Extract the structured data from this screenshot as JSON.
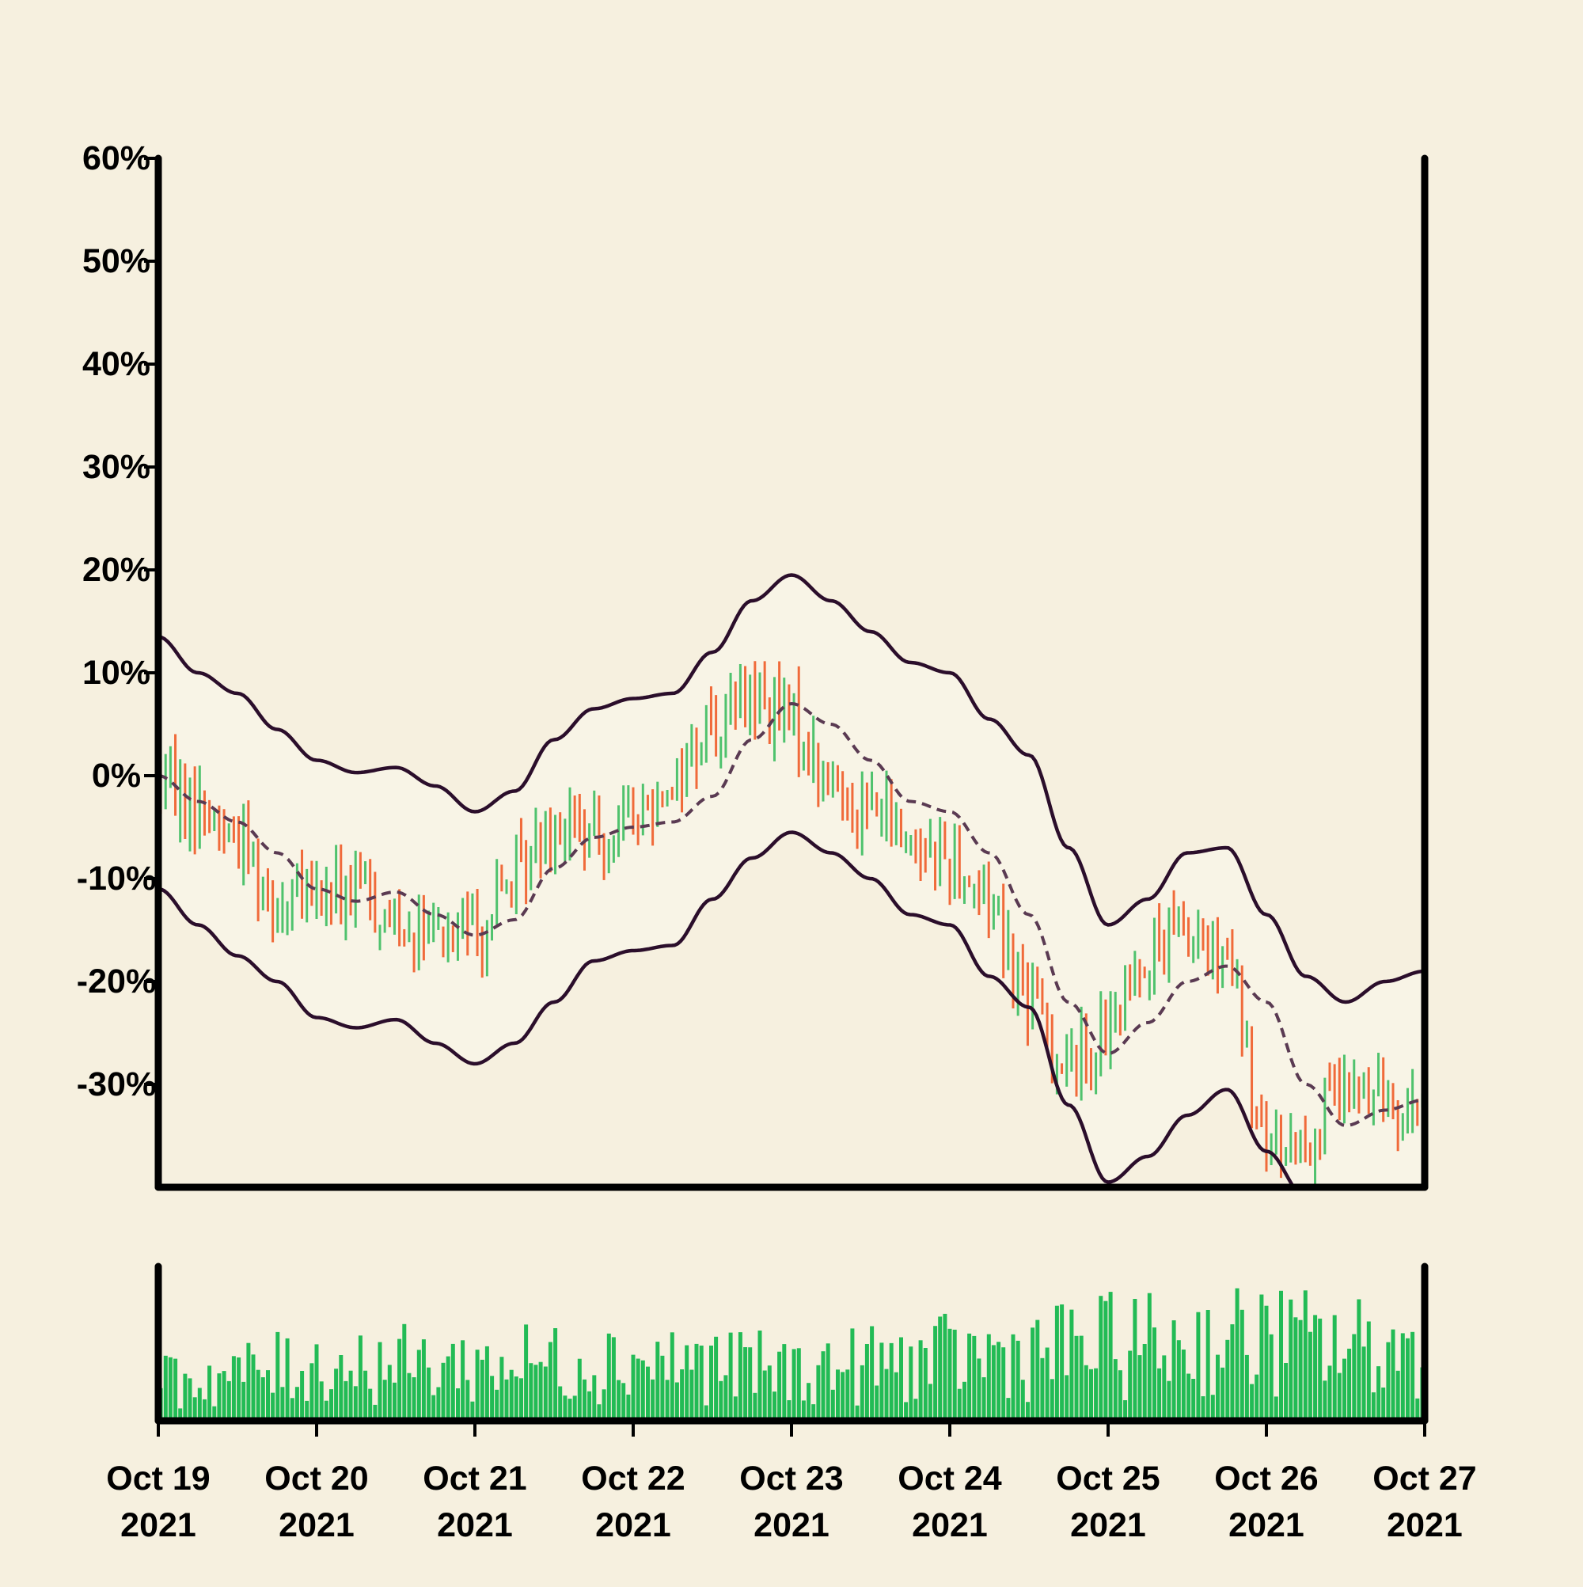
{
  "chart_data": {
    "type": "ohlc",
    "title": "",
    "xlabel": "",
    "ylabel": "",
    "ylim": [
      -40,
      60
    ],
    "y_ticks": [
      "60%",
      "50%",
      "40%",
      "30%",
      "20%",
      "10%",
      "0%",
      "-10%",
      "-20%",
      "-30%"
    ],
    "y_tick_values": [
      60,
      50,
      40,
      30,
      20,
      10,
      0,
      -10,
      -20,
      -30
    ],
    "x_range": [
      "2021-10-19",
      "2021-10-27"
    ],
    "x_ticks": [
      {
        "date": "2021-10-19",
        "line1": "Oct 19",
        "line2": "2021"
      },
      {
        "date": "2021-10-20",
        "line1": "Oct 20",
        "line2": "2021"
      },
      {
        "date": "2021-10-21",
        "line1": "Oct 21",
        "line2": "2021"
      },
      {
        "date": "2021-10-22",
        "line1": "Oct 22",
        "line2": "2021"
      },
      {
        "date": "2021-10-23",
        "line1": "Oct 23",
        "line2": "2021"
      },
      {
        "date": "2021-10-24",
        "line1": "Oct 24",
        "line2": "2021"
      },
      {
        "date": "2021-10-25",
        "line1": "Oct 25",
        "line2": "2021"
      },
      {
        "date": "2021-10-26",
        "line1": "Oct 26",
        "line2": "2021"
      },
      {
        "date": "2021-10-27",
        "line1": "Oct 27",
        "line2": "2021"
      }
    ],
    "middle_band": [
      [
        "2021-10-19 00:00",
        0
      ],
      [
        "2021-10-19 06:00",
        -2.5
      ],
      [
        "2021-10-19 12:00",
        -4.5
      ],
      [
        "2021-10-19 18:00",
        -7.5
      ],
      [
        "2021-10-20 00:00",
        -11
      ],
      [
        "2021-10-20 06:00",
        -12.2
      ],
      [
        "2021-10-20 12:00",
        -11.3
      ],
      [
        "2021-10-20 18:00",
        -13.5
      ],
      [
        "2021-10-21 00:00",
        -15.5
      ],
      [
        "2021-10-21 06:00",
        -14
      ],
      [
        "2021-10-21 12:00",
        -9
      ],
      [
        "2021-10-21 18:00",
        -6
      ],
      [
        "2021-10-22 00:00",
        -5
      ],
      [
        "2021-10-22 06:00",
        -4.5
      ],
      [
        "2021-10-22 12:00",
        -2
      ],
      [
        "2021-10-22 18:00",
        3.5
      ],
      [
        "2021-10-23 00:00",
        7
      ],
      [
        "2021-10-23 06:00",
        5
      ],
      [
        "2021-10-23 12:00",
        1.5
      ],
      [
        "2021-10-23 18:00",
        -2.5
      ],
      [
        "2021-10-24 00:00",
        -3.5
      ],
      [
        "2021-10-24 06:00",
        -7.5
      ],
      [
        "2021-10-24 12:00",
        -13.5
      ],
      [
        "2021-10-24 18:00",
        -22
      ],
      [
        "2021-10-25 00:00",
        -27
      ],
      [
        "2021-10-25 06:00",
        -24
      ],
      [
        "2021-10-25 12:00",
        -20
      ],
      [
        "2021-10-25 18:00",
        -18.5
      ],
      [
        "2021-10-26 00:00",
        -22
      ],
      [
        "2021-10-26 06:00",
        -30
      ],
      [
        "2021-10-26 12:00",
        -34
      ],
      [
        "2021-10-26 18:00",
        -32.5
      ],
      [
        "2021-10-27 00:00",
        -31.5
      ]
    ],
    "upper_band": [
      [
        "2021-10-19 00:00",
        13.5
      ],
      [
        "2021-10-19 06:00",
        10
      ],
      [
        "2021-10-19 12:00",
        8
      ],
      [
        "2021-10-19 18:00",
        4.5
      ],
      [
        "2021-10-20 00:00",
        1.5
      ],
      [
        "2021-10-20 06:00",
        0.3
      ],
      [
        "2021-10-20 12:00",
        0.8
      ],
      [
        "2021-10-20 18:00",
        -1
      ],
      [
        "2021-10-21 00:00",
        -3.5
      ],
      [
        "2021-10-21 06:00",
        -1.5
      ],
      [
        "2021-10-21 12:00",
        3.5
      ],
      [
        "2021-10-21 18:00",
        6.5
      ],
      [
        "2021-10-22 00:00",
        7.5
      ],
      [
        "2021-10-22 06:00",
        8
      ],
      [
        "2021-10-22 12:00",
        12
      ],
      [
        "2021-10-22 18:00",
        17
      ],
      [
        "2021-10-23 00:00",
        19.5
      ],
      [
        "2021-10-23 06:00",
        17
      ],
      [
        "2021-10-23 12:00",
        14
      ],
      [
        "2021-10-23 18:00",
        11
      ],
      [
        "2021-10-24 00:00",
        10
      ],
      [
        "2021-10-24 06:00",
        5.5
      ],
      [
        "2021-10-24 12:00",
        2
      ],
      [
        "2021-10-24 18:00",
        -7
      ],
      [
        "2021-10-25 00:00",
        -14.5
      ],
      [
        "2021-10-25 06:00",
        -12
      ],
      [
        "2021-10-25 12:00",
        -7.5
      ],
      [
        "2021-10-25 18:00",
        -7
      ],
      [
        "2021-10-26 00:00",
        -13.5
      ],
      [
        "2021-10-26 06:00",
        -19.5
      ],
      [
        "2021-10-26 12:00",
        -22
      ],
      [
        "2021-10-26 18:00",
        -20
      ],
      [
        "2021-10-27 00:00",
        -19
      ]
    ],
    "lower_band": [
      [
        "2021-10-19 00:00",
        -11
      ],
      [
        "2021-10-19 06:00",
        -14.5
      ],
      [
        "2021-10-19 12:00",
        -17.5
      ],
      [
        "2021-10-19 18:00",
        -20
      ],
      [
        "2021-10-20 00:00",
        -23.5
      ],
      [
        "2021-10-20 06:00",
        -24.5
      ],
      [
        "2021-10-20 12:00",
        -23.7
      ],
      [
        "2021-10-20 18:00",
        -26
      ],
      [
        "2021-10-21 00:00",
        -28
      ],
      [
        "2021-10-21 06:00",
        -26
      ],
      [
        "2021-10-21 12:00",
        -22
      ],
      [
        "2021-10-21 18:00",
        -18
      ],
      [
        "2021-10-22 00:00",
        -17
      ],
      [
        "2021-10-22 06:00",
        -16.5
      ],
      [
        "2021-10-22 12:00",
        -12
      ],
      [
        "2021-10-22 18:00",
        -8
      ],
      [
        "2021-10-23 00:00",
        -5.5
      ],
      [
        "2021-10-23 06:00",
        -7.5
      ],
      [
        "2021-10-23 12:00",
        -10
      ],
      [
        "2021-10-23 18:00",
        -13.5
      ],
      [
        "2021-10-24 00:00",
        -14.5
      ],
      [
        "2021-10-24 06:00",
        -19.5
      ],
      [
        "2021-10-24 12:00",
        -22.5
      ],
      [
        "2021-10-24 18:00",
        -32
      ],
      [
        "2021-10-25 00:00",
        -39.5
      ],
      [
        "2021-10-25 06:00",
        -37
      ],
      [
        "2021-10-25 12:00",
        -33
      ],
      [
        "2021-10-25 18:00",
        -30.5
      ],
      [
        "2021-10-26 00:00",
        -36.5
      ],
      [
        "2021-10-26 06:00",
        -41
      ]
    ],
    "price_path": [
      [
        "2021-10-19 00:00",
        0
      ],
      [
        "2021-10-19 06:00",
        -3
      ],
      [
        "2021-10-19 12:00",
        -6
      ],
      [
        "2021-10-19 18:00",
        -12
      ],
      [
        "2021-10-20 00:00",
        -12
      ],
      [
        "2021-10-20 06:00",
        -11
      ],
      [
        "2021-10-20 12:00",
        -14
      ],
      [
        "2021-10-20 18:00",
        -16
      ],
      [
        "2021-10-21 00:00",
        -15
      ],
      [
        "2021-10-21 06:00",
        -10
      ],
      [
        "2021-10-21 12:00",
        -4
      ],
      [
        "2021-10-21 18:00",
        -6
      ],
      [
        "2021-10-22 00:00",
        -4
      ],
      [
        "2021-10-22 06:00",
        0
      ],
      [
        "2021-10-22 12:00",
        5
      ],
      [
        "2021-10-22 18:00",
        8
      ],
      [
        "2021-10-23 00:00",
        5
      ],
      [
        "2021-10-23 06:00",
        -1
      ],
      [
        "2021-10-23 12:00",
        -3
      ],
      [
        "2021-10-23 18:00",
        -6
      ],
      [
        "2021-10-24 00:00",
        -8
      ],
      [
        "2021-10-24 06:00",
        -12
      ],
      [
        "2021-10-24 12:00",
        -22
      ],
      [
        "2021-10-24 18:00",
        -28
      ],
      [
        "2021-10-25 00:00",
        -25
      ],
      [
        "2021-10-25 06:00",
        -17
      ],
      [
        "2021-10-25 12:00",
        -15
      ],
      [
        "2021-10-25 18:00",
        -19
      ],
      [
        "2021-10-26 00:00",
        -36
      ],
      [
        "2021-10-26 06:00",
        -35
      ],
      [
        "2021-10-26 12:00",
        -31
      ],
      [
        "2021-10-26 18:00",
        -31
      ],
      [
        "2021-10-27 00:00",
        -32
      ]
    ],
    "bar_count": 260,
    "volume_level": [
      [
        "2021-10-19",
        0.3
      ],
      [
        "2021-10-20",
        0.45
      ],
      [
        "2021-10-21",
        0.45
      ],
      [
        "2021-10-22",
        0.5
      ],
      [
        "2021-10-23",
        0.4
      ],
      [
        "2021-10-24",
        0.5
      ],
      [
        "2021-10-25",
        0.6
      ],
      [
        "2021-10-26",
        0.65
      ],
      [
        "2021-10-27",
        0.55
      ]
    ],
    "colors": {
      "background": "#f6f0df",
      "band_fill": "#f8f4e6",
      "band_line": "#2b0e2b",
      "middle_line": "#5a3a52",
      "up": "#4fc26d",
      "down": "#f06a3a",
      "volume": "#22bb55",
      "axis": "#000000"
    }
  }
}
